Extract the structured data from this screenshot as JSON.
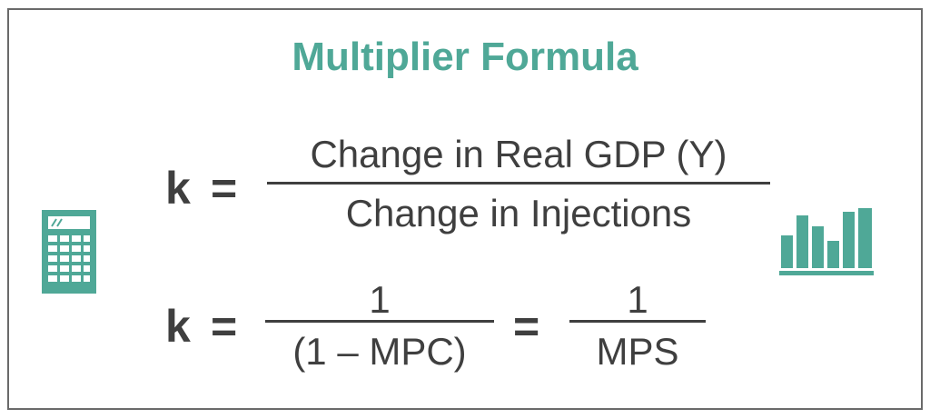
{
  "title": "Multiplier Formula",
  "formula1": {
    "lhs": "k",
    "equals": "=",
    "numerator": "Change in Real GDP (Y)",
    "denominator": "Change in Injections"
  },
  "formula2": {
    "lhs": "k",
    "equals": "=",
    "numerator1": "1",
    "denominator1": "(1 – MPC)",
    "equals2": "=",
    "numerator2": "1",
    "denominator2": "MPS"
  },
  "icons": {
    "left": "calculator-icon",
    "right": "bar-chart-icon",
    "accent_color": "#4fa897"
  }
}
